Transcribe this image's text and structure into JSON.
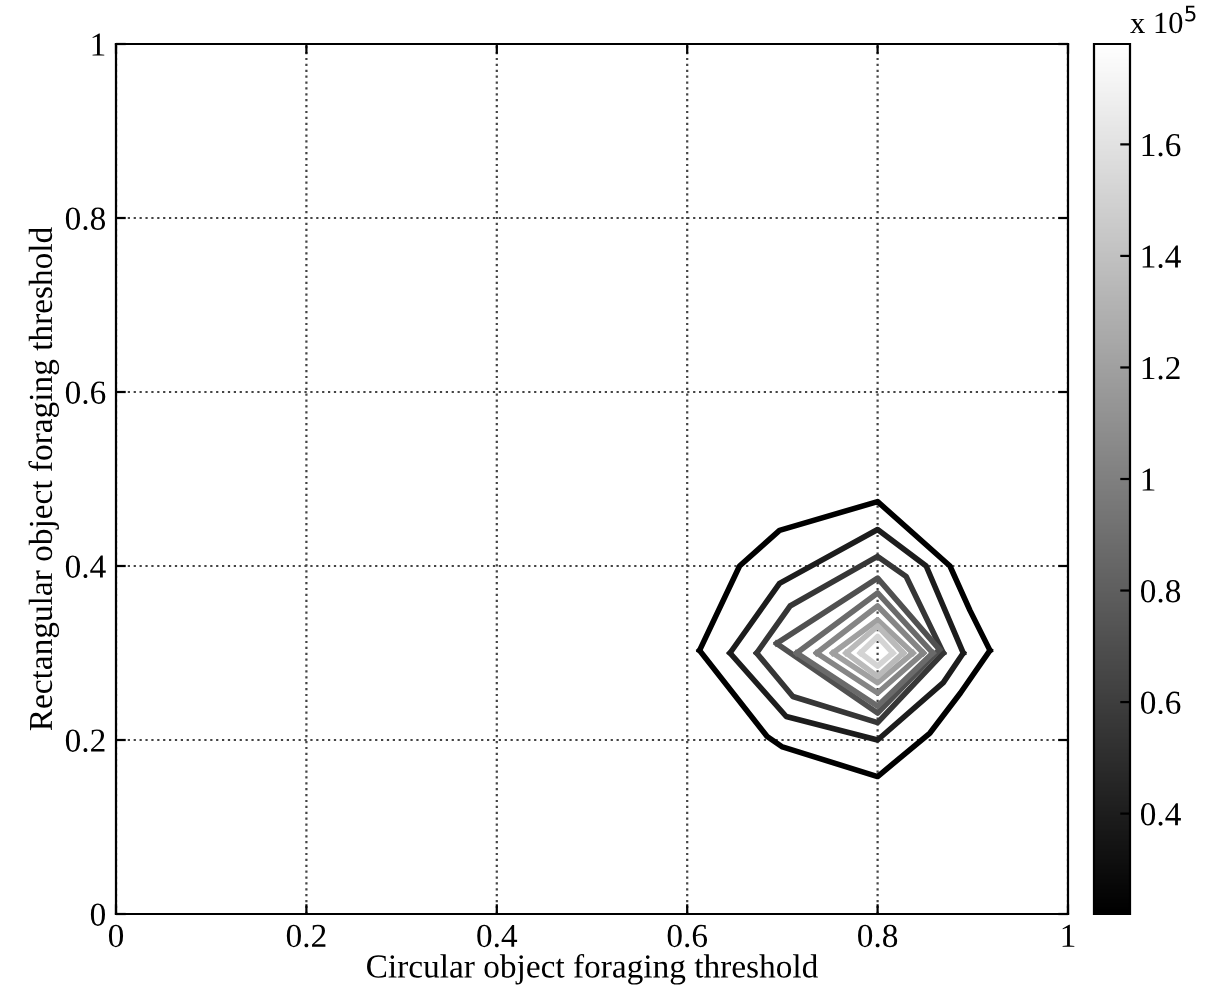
{
  "chart_data": {
    "type": "line",
    "xlabel": "Circular object foraging threshold",
    "ylabel": "Rectangular object foraging threshold",
    "xlim": [
      0,
      1
    ],
    "ylim": [
      0,
      1
    ],
    "xticks": [
      0,
      0.2,
      0.4,
      0.6,
      0.8,
      1
    ],
    "yticks": [
      0,
      0.2,
      0.4,
      0.6,
      0.8,
      1
    ],
    "grid": true,
    "clabel": "x 10$^{5}$",
    "clim": [
      0.22,
      1.78
    ],
    "cticks": [
      0.4,
      0.6,
      0.8,
      1,
      1.2,
      1.4,
      1.6
    ],
    "series": [
      {
        "color": "#000000",
        "x": [
          0.613,
          0.655,
          0.697,
          0.8,
          0.876,
          0.897,
          0.918
        ],
        "values": [
          0.303,
          0.4,
          0.441,
          0.474,
          0.4,
          0.349,
          0.303
        ]
      },
      {
        "color": "#000000",
        "x": [
          0.613,
          0.684,
          0.7,
          0.8,
          0.855,
          0.887,
          0.918
        ],
        "values": [
          0.303,
          0.204,
          0.192,
          0.158,
          0.208,
          0.254,
          0.303
        ]
      },
      {
        "color": "#1c1c1c",
        "x": [
          0.645,
          0.697,
          0.8,
          0.851,
          0.89
        ],
        "values": [
          0.3,
          0.38,
          0.442,
          0.4,
          0.3
        ]
      },
      {
        "color": "#1c1c1c",
        "x": [
          0.645,
          0.704,
          0.8,
          0.869,
          0.89
        ],
        "values": [
          0.3,
          0.227,
          0.2,
          0.266,
          0.3
        ]
      },
      {
        "color": "#363636",
        "x": [
          0.673,
          0.708,
          0.8,
          0.83,
          0.869
        ],
        "values": [
          0.3,
          0.354,
          0.411,
          0.388,
          0.3
        ]
      },
      {
        "color": "#363636",
        "x": [
          0.673,
          0.711,
          0.8,
          0.869
        ],
        "values": [
          0.3,
          0.25,
          0.22,
          0.3
        ]
      },
      {
        "color": "#505050",
        "x": [
          0.694,
          0.8,
          0.865
        ],
        "values": [
          0.311,
          0.386,
          0.304
        ]
      },
      {
        "color": "#505050",
        "x": [
          0.694,
          0.8,
          0.865
        ],
        "values": [
          0.311,
          0.231,
          0.304
        ]
      },
      {
        "color": "#6a6a6a",
        "x": [
          0.715,
          0.8,
          0.858
        ],
        "values": [
          0.3,
          0.369,
          0.3
        ]
      },
      {
        "color": "#6a6a6a",
        "x": [
          0.715,
          0.8,
          0.858
        ],
        "values": [
          0.3,
          0.239,
          0.3
        ]
      },
      {
        "color": "#858585",
        "x": [
          0.736,
          0.8,
          0.848
        ],
        "values": [
          0.3,
          0.354,
          0.3
        ]
      },
      {
        "color": "#858585",
        "x": [
          0.736,
          0.8,
          0.848
        ],
        "values": [
          0.3,
          0.254,
          0.3
        ]
      },
      {
        "color": "#a0a0a0",
        "x": [
          0.753,
          0.8,
          0.837
        ],
        "values": [
          0.3,
          0.338,
          0.3
        ]
      },
      {
        "color": "#a0a0a0",
        "x": [
          0.753,
          0.8,
          0.837
        ],
        "values": [
          0.3,
          0.266,
          0.3
        ]
      },
      {
        "color": "#bababa",
        "x": [
          0.767,
          0.8,
          0.827
        ],
        "values": [
          0.3,
          0.331,
          0.3
        ]
      },
      {
        "color": "#bababa",
        "x": [
          0.767,
          0.8,
          0.827
        ],
        "values": [
          0.3,
          0.273,
          0.3
        ]
      },
      {
        "color": "#d4d4d4",
        "x": [
          0.782,
          0.8,
          0.816
        ],
        "values": [
          0.3,
          0.319,
          0.3
        ]
      },
      {
        "color": "#d4d4d4",
        "x": [
          0.782,
          0.8,
          0.816
        ],
        "values": [
          0.3,
          0.285,
          0.3
        ]
      }
    ]
  }
}
